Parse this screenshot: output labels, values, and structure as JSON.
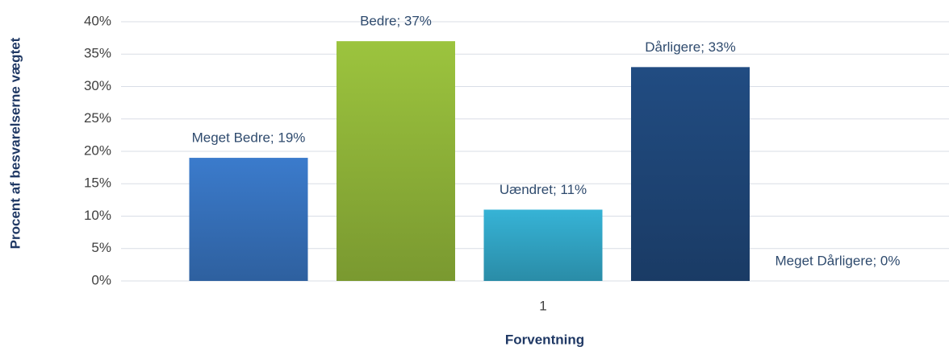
{
  "chart_data": {
    "type": "bar",
    "y_label": "Procent af besvarelserne vægtet",
    "x_label": "Forventning",
    "categories": [
      "1"
    ],
    "series": [
      {
        "color": "#3b7bcc",
        "values": [
          19
        ],
        "value_labels": [
          "Meget Bedre; 19%"
        ]
      },
      {
        "color": "#9cc43e",
        "values": [
          37
        ],
        "value_labels": [
          "Bedre; 37%"
        ]
      },
      {
        "color": "#36b3d6",
        "values": [
          11
        ],
        "value_labels": [
          "Uændret; 11%"
        ]
      },
      {
        "color": "#214c82",
        "values": [
          33
        ],
        "value_labels": [
          "Dårligere; 33%"
        ]
      },
      {
        "color": "#0f2d52",
        "values": [
          0
        ],
        "value_labels": [
          "Meget Dårligere; 0%"
        ]
      }
    ],
    "ylim": [
      0,
      40
    ],
    "yticks": [
      {
        "value": 0,
        "label": "0%"
      },
      {
        "value": 5,
        "label": "5%"
      },
      {
        "value": 10,
        "label": "10%"
      },
      {
        "value": 15,
        "label": "15%"
      },
      {
        "value": 20,
        "label": "20%"
      },
      {
        "value": 25,
        "label": "25%"
      },
      {
        "value": 30,
        "label": "30%"
      },
      {
        "value": 35,
        "label": "35%"
      },
      {
        "value": 40,
        "label": "40%"
      }
    ],
    "grid": true
  }
}
